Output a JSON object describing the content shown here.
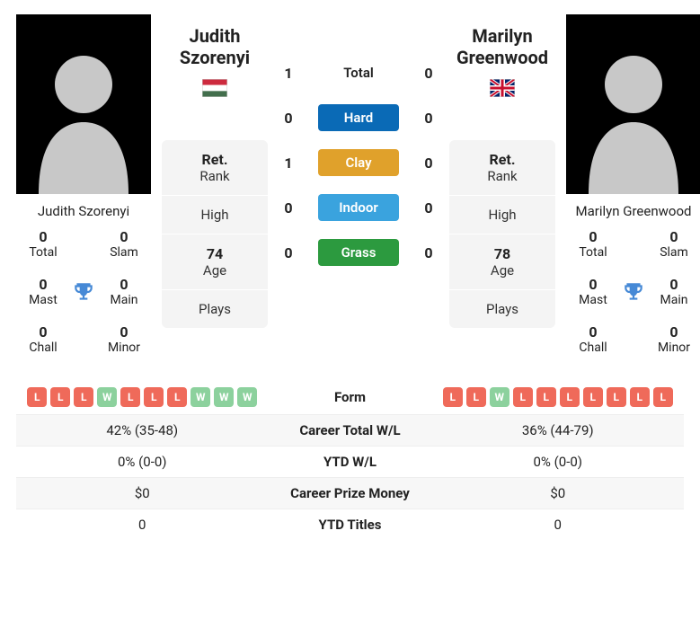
{
  "colors": {
    "hard": "#0a6ab6",
    "clay": "#e0a12b",
    "indoor": "#3aa3de",
    "grass": "#2c9a3f",
    "win_pill": "#8cd19d",
    "loss_pill": "#ef6a5a",
    "trophy": "#4689d6",
    "bg_stat": "#f4f4f4",
    "bg_alt_row": "#f7f7f7"
  },
  "p1": {
    "name": "Judith Szorenyi",
    "short_name": "Judith Szorenyi",
    "flag": "HU",
    "titles": {
      "total": "0",
      "slam": "0",
      "mast": "0",
      "main": "0",
      "chall": "0",
      "minor": "0"
    },
    "rank_label": "Ret.",
    "rank_sub": "Rank",
    "high_label": "High",
    "high_value": "",
    "age": "74",
    "age_label": "Age",
    "plays_label": "Plays",
    "plays_value": ""
  },
  "p2": {
    "name": "Marilyn Greenwood",
    "short_name": "Marilyn Greenwood",
    "flag": "GB",
    "titles": {
      "total": "0",
      "slam": "0",
      "mast": "0",
      "main": "0",
      "chall": "0",
      "minor": "0"
    },
    "rank_label": "Ret.",
    "rank_sub": "Rank",
    "high_label": "High",
    "high_value": "",
    "age": "78",
    "age_label": "Age",
    "plays_label": "Plays",
    "plays_value": ""
  },
  "titles_labels": {
    "total": "Total",
    "slam": "Slam",
    "mast": "Mast",
    "main": "Main",
    "chall": "Chall",
    "minor": "Minor"
  },
  "h2h": {
    "total_label": "Total",
    "rows": [
      {
        "label": "Total",
        "p1": "1",
        "p2": "0",
        "kind": "total"
      },
      {
        "label": "Hard",
        "p1": "0",
        "p2": "0",
        "kind": "hard"
      },
      {
        "label": "Clay",
        "p1": "1",
        "p2": "0",
        "kind": "clay"
      },
      {
        "label": "Indoor",
        "p1": "0",
        "p2": "0",
        "kind": "indoor"
      },
      {
        "label": "Grass",
        "p1": "0",
        "p2": "0",
        "kind": "grass"
      }
    ]
  },
  "form": {
    "label": "Form",
    "p1": [
      "L",
      "L",
      "L",
      "W",
      "L",
      "L",
      "L",
      "W",
      "W",
      "W"
    ],
    "p2": [
      "L",
      "L",
      "W",
      "L",
      "L",
      "L",
      "L",
      "L",
      "L",
      "L"
    ]
  },
  "compare": [
    {
      "label": "Career Total W/L",
      "p1": "42% (35-48)",
      "p2": "36% (44-79)"
    },
    {
      "label": "YTD W/L",
      "p1": "0% (0-0)",
      "p2": "0% (0-0)"
    },
    {
      "label": "Career Prize Money",
      "p1": "$0",
      "p2": "$0"
    },
    {
      "label": "YTD Titles",
      "p1": "0",
      "p2": "0"
    }
  ]
}
